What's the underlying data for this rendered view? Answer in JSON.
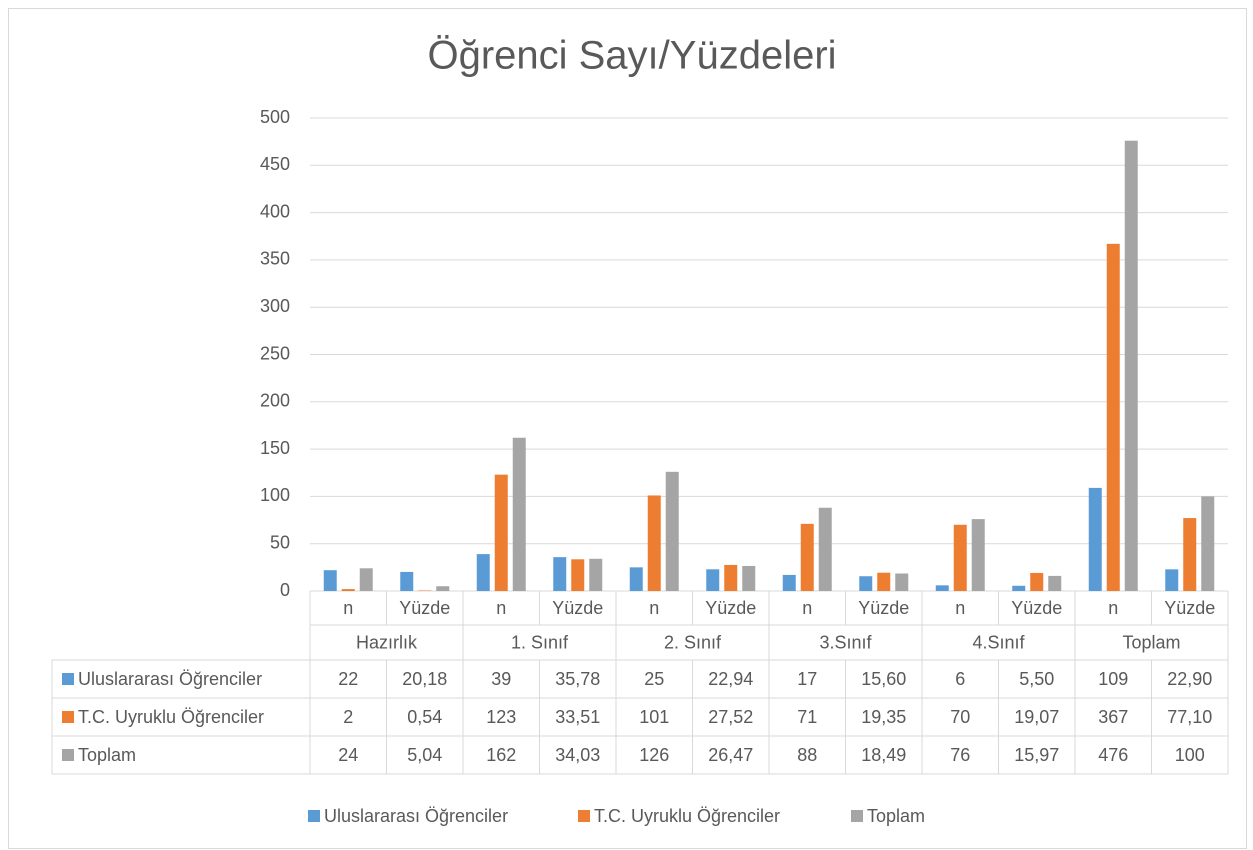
{
  "chart_data": {
    "type": "bar",
    "title": "Öğrenci Sayı/Yüzdeleri",
    "groups": [
      "Hazırlık",
      "1. Sınıf",
      "2. Sınıf",
      "3.Sınıf",
      "4.Sınıf",
      "Toplam"
    ],
    "categories": [
      "n",
      "Yüzde",
      "n",
      "Yüzde",
      "n",
      "Yüzde",
      "n",
      "Yüzde",
      "n",
      "Yüzde",
      "n",
      "Yüzde"
    ],
    "series": [
      {
        "name": "Uluslararası Öğrenciler",
        "color": "#5b9bd5",
        "values": [
          22,
          20.18,
          39,
          35.78,
          25,
          22.94,
          17,
          15.6,
          6,
          5.5,
          109,
          22.9
        ],
        "value_labels": [
          "22",
          "20,18",
          "39",
          "35,78",
          "25",
          "22,94",
          "17",
          "15,60",
          "6",
          "5,50",
          "109",
          "22,90"
        ]
      },
      {
        "name": "T.C. Uyruklu Öğrenciler",
        "color": "#ed7d31",
        "values": [
          2,
          0.54,
          123,
          33.51,
          101,
          27.52,
          71,
          19.35,
          70,
          19.07,
          367,
          77.1
        ],
        "value_labels": [
          "2",
          "0,54",
          "123",
          "33,51",
          "101",
          "27,52",
          "71",
          "19,35",
          "70",
          "19,07",
          "367",
          "77,10"
        ]
      },
      {
        "name": "Toplam",
        "color": "#a5a5a5",
        "values": [
          24,
          5.04,
          162,
          34.03,
          126,
          26.47,
          88,
          18.49,
          76,
          15.97,
          476,
          100
        ],
        "value_labels": [
          "24",
          "5,04",
          "162",
          "34,03",
          "126",
          "26,47",
          "88",
          "18,49",
          "76",
          "15,97",
          "476",
          "100"
        ]
      }
    ],
    "ylim": [
      0,
      500
    ],
    "yticks": [
      0,
      50,
      100,
      150,
      200,
      250,
      300,
      350,
      400,
      450,
      500
    ],
    "grid": true,
    "data_table": true,
    "legend": "bottom"
  }
}
